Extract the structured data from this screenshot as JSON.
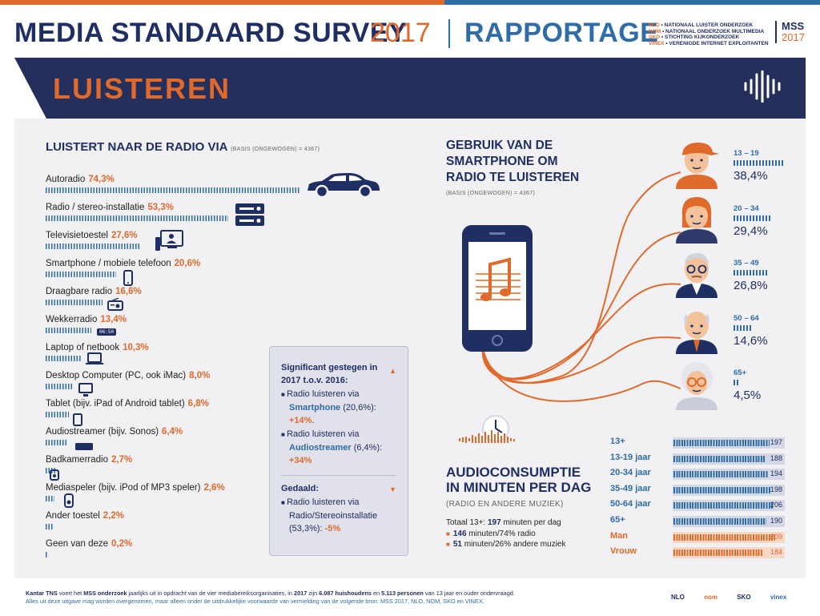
{
  "header": {
    "title": "MEDIA STANDAARD SURVEY",
    "year": "2017",
    "rapportage": "RAPPORTAGE",
    "orgs": [
      {
        "key": "NLO",
        "text": " • NATIONAAL LUISTER ONDERZOEK"
      },
      {
        "key": "NOM",
        "text": " • NATIONAAL ONDERZOEK MULTIMEDIA"
      },
      {
        "key": "SKO",
        "text": " • STICHTING KIJKONDERZOEK"
      },
      {
        "key": "VINEX",
        "text": " • VERENIGDE INTERNET EXPLOITANTEN"
      }
    ],
    "mss": "MSS",
    "mss_year": "2017"
  },
  "banner": {
    "label": "LUISTEREN"
  },
  "radio": {
    "title": "LUISTERT NAAR DE RADIO VIA",
    "basis": "(BASIS (ONGEWOGEN) = 4367)",
    "wekker_time": "06:50"
  },
  "smartphone": {
    "title_l1": "GEBRUIK VAN DE",
    "title_l2": "SMARTPHONE OM",
    "title_l3": "RADIO TE LUISTEREN",
    "basis": "(BASIS (ONGEWOGEN) = 4367)"
  },
  "notes": {
    "heading_up": "Significant gestegen in 2017 t.o.v. 2016:",
    "item1_a": "Radio luisteren via ",
    "item1_b": "Smartphone",
    "item1_c": "(20,6%): ",
    "item1_d": "+14%",
    "item1_e": ".",
    "item2_a": "Radio luisteren via ",
    "item2_b": "Audiostreamer",
    "item2_c": "(6,4%): ",
    "item2_d": "+34%",
    "heading_down": "Gedaald:",
    "item3_a": "Radio luisteren via Radio/Stereoinstallatie (53,3%): ",
    "item3_b": "-5%"
  },
  "audio": {
    "title_l1": "AUDIOCONSUMPTIE",
    "title_l2": "IN MINUTEN PER DAG",
    "subtitle": "(RADIO EN ANDERE MUZIEK)",
    "total_a": "Totaal 13+: ",
    "total_b": "197",
    "total_c": " minuten per dag",
    "radio_a": "146",
    "radio_b": " minuten/74% radio",
    "other_a": "51",
    "other_b": " minuten/26% andere muziek"
  },
  "footer": {
    "line1_a": "Kantar TNS",
    "line1_b": " voert het ",
    "line1_c": "MSS onderzoek",
    "line1_d": " jaarlijks uit in opdracht van de vier mediabereiksorganisaties, in ",
    "line1_e": "2017",
    "line1_f": " zijn ",
    "line1_g": "6.087 huishoudens",
    "line1_h": " en ",
    "line1_i": "5.113 personen",
    "line1_j": " van 13 jaar en ouder ondervraagd.",
    "line2": "Alles uit deze uitgave mag worden overgenomen, maar alleen onder de uitdrukkelijke voorwaarde van vermelding van de volgende bron: MSS 2017, NLO, NOM, SKO en VINEX.",
    "logos": [
      "NLO",
      "nom",
      "SKO",
      "vinex"
    ]
  },
  "chart_data": [
    {
      "type": "bar",
      "title": "LUISTERT NAAR DE RADIO VIA",
      "categories": [
        "Autoradio",
        "Radio / stereo-installatie",
        "Televisietoestel",
        "Smartphone / mobiele telefoon",
        "Draagbare radio",
        "Wekkerradio",
        "Laptop of netbook",
        "Desktop Computer (PC, ook iMac)",
        "Tablet (bijv. iPad of Android tablet)",
        "Audiostreamer (bijv. Sonos)",
        "Badkamerradio",
        "Mediaspeler (bijv. iPod of MP3 speler)",
        "Ander toestel",
        "Geen van deze"
      ],
      "values": [
        74.3,
        53.3,
        27.6,
        20.6,
        16.6,
        13.4,
        10.3,
        8.0,
        6.8,
        6.4,
        2.7,
        2.6,
        2.2,
        0.2
      ],
      "labels": [
        "74,3%",
        "53,3%",
        "27,6%",
        "20,6%",
        "16,6%",
        "13,4%",
        "10,3%",
        "8,0%",
        "6,8%",
        "6,4%",
        "2,7%",
        "2,6%",
        "2,2%",
        "0,2%"
      ],
      "icons": [
        "car-icon",
        "stereo-icon",
        "tv-icon",
        "smartphone-icon",
        "portable-radio-icon",
        "alarm-clock-icon",
        "laptop-icon",
        "desktop-icon",
        "tablet-icon",
        "audiostreamer-icon",
        "shower-radio-icon",
        "mediaplayer-icon",
        "",
        ""
      ]
    },
    {
      "type": "bar",
      "title": "GEBRUIK VAN DE SMARTPHONE OM RADIO TE LUISTEREN",
      "categories": [
        "13 – 19",
        "20 – 34",
        "35 – 49",
        "50 – 64",
        "65+"
      ],
      "values": [
        38.4,
        29.4,
        26.8,
        14.6,
        4.5
      ],
      "labels": [
        "38,4%",
        "29,4%",
        "26,8%",
        "14,6%",
        "4,5%"
      ]
    },
    {
      "type": "bar",
      "title": "AUDIOCONSUMPTIE IN MINUTEN PER DAG",
      "categories": [
        "13+",
        "13-19 jaar",
        "20-34 jaar",
        "35-49 jaar",
        "50-64 jaar",
        "65+",
        "Man",
        "Vrouw"
      ],
      "values": [
        197,
        188,
        194,
        198,
        206,
        190,
        209,
        184
      ],
      "highlight": [
        "Man",
        "Vrouw"
      ],
      "colors": {
        "blue": "#2f6ca8",
        "orange": "#e06a2c",
        "navy": "#1f2e63"
      }
    }
  ]
}
